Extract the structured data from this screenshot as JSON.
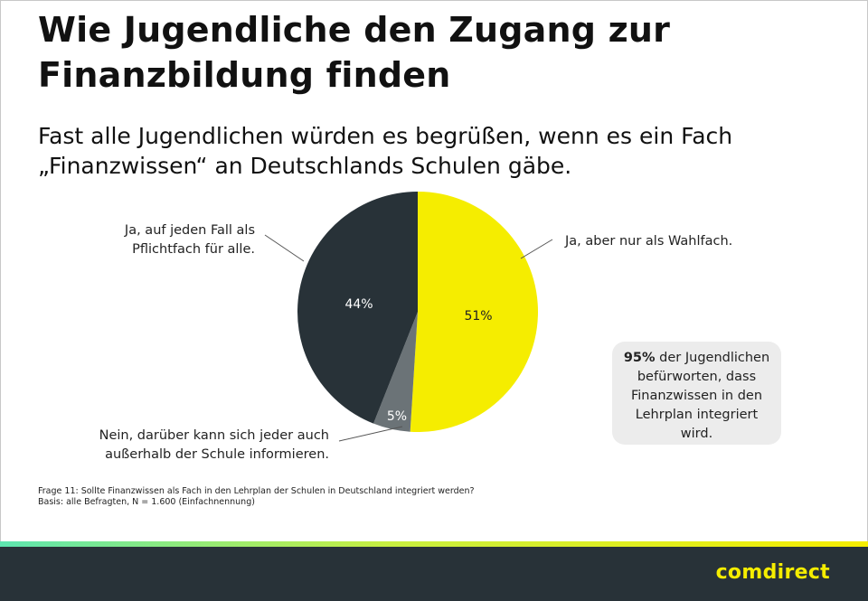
{
  "title": "Wie Jugendliche den Zugang zur Finanzbildung finden",
  "subtitle": "Fast alle Jugendlichen würden es begrüßen, wenn es ein Fach „Finanzwissen“ an Deutschlands Schulen gäbe.",
  "chart_data": {
    "type": "pie",
    "slices": [
      {
        "label": "Ja, aber nur als Wahlfach.",
        "value": 51,
        "display": "51%",
        "color": "#f5ed00",
        "text_color": "#222222"
      },
      {
        "label": "Nein, darüber kann sich jeder auch außerhalb der Schule informieren.",
        "value": 5,
        "display": "5%",
        "color": "#6b7377",
        "text_color": "#ffffff"
      },
      {
        "label": "Ja, auf jeden Fall als Pflichtfach für alle.",
        "value": 44,
        "display": "44%",
        "color": "#283238",
        "text_color": "#ffffff"
      }
    ],
    "start": "12 o'clock",
    "direction": "clockwise"
  },
  "labels": {
    "pflicht_line1": "Ja, auf jeden Fall als",
    "pflicht_line2": "Pflichtfach für alle.",
    "wahl": "Ja, aber nur als Wahlfach.",
    "nein_line1": "Nein, darüber kann sich jeder auch",
    "nein_line2": "außerhalb der Schule informieren."
  },
  "callout": {
    "bold": "95%",
    "rest_line1": " der Jugendlichen",
    "line2": "befürworten, dass",
    "line3": "Finanzwissen in den",
    "line4": "Lehrplan integriert",
    "line5": "wird."
  },
  "footnote": {
    "line1": "Frage 11: Sollte Finanzwissen als Fach in den Lehrplan der Schulen in Deutschland integriert werden?",
    "line2": "Basis: alle Befragten, N = 1.600 (Einfachnennung)"
  },
  "brand": "comdirect",
  "colors": {
    "accent": "#f5ed00",
    "dark": "#283238",
    "grey": "#6b7377",
    "callout_bg": "#ececec"
  }
}
